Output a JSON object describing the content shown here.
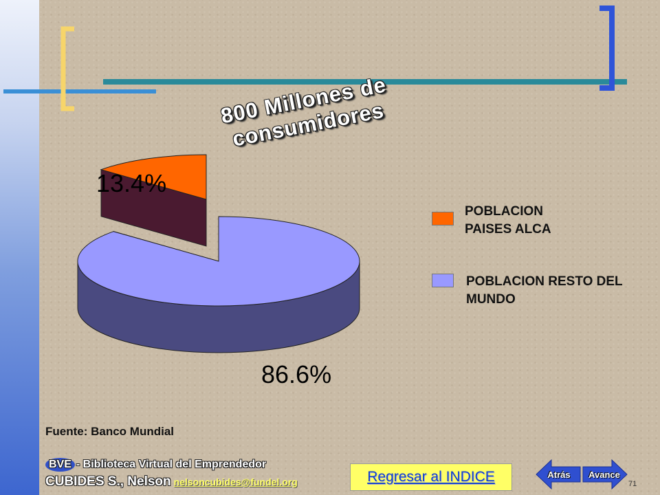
{
  "slide": {
    "title": "800 Millones de consumidores",
    "source": "Fuente: Banco Mundial",
    "footer_badge": "BVE",
    "footer_line1": "- Biblioteca Virtual del Emprendedor",
    "footer_line2": "CUBIDES S., Nelson",
    "email": "nelsoncubides@fundel.org",
    "index_link": "Regresar al INDICE",
    "back_label": "Atrás",
    "next_label": "Avance",
    "page_number": "71"
  },
  "colors": {
    "alca": "#ff6600",
    "alca_side": "#4a1a30",
    "resto": "#9999ff",
    "resto_side": "#4a4a80"
  },
  "chart_data": {
    "type": "pie",
    "title": "800 Millones de consumidores",
    "labels": [
      "13.4%",
      "86.6%"
    ],
    "series": [
      {
        "name": "POBLACION PAISES ALCA",
        "value": 13.4,
        "color": "#ff6600"
      },
      {
        "name": "POBLACION RESTO DEL MUNDO",
        "value": 86.6,
        "color": "#9999ff"
      }
    ],
    "legend_position": "right",
    "source": "Fuente: Banco Mundial"
  }
}
